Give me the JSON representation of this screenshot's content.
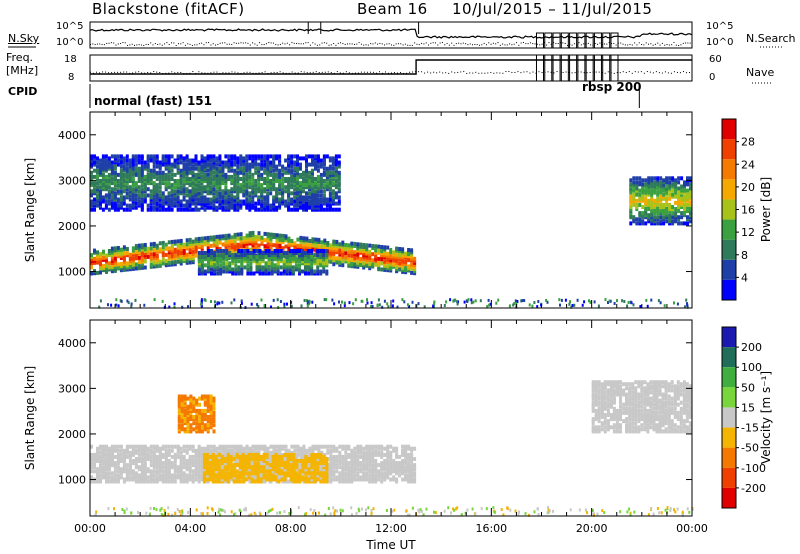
{
  "header": {
    "title": "Blackstone (fitACF)",
    "beam": "Beam 16",
    "date_range": "10/Jul/2015 – 11/Jul/2015"
  },
  "params": {
    "nsky_label": "N.Sky",
    "nsearch_label": "N.Search",
    "freq_label_1": "Freq.",
    "freq_label_2": "[MHz]",
    "nave_label": "Nave",
    "cpid_label": "CPID",
    "nsky_tick_top": "10^5",
    "nsky_tick_bottom": "10^0",
    "nsearch_tick_top": "10^5",
    "nsearch_tick_bottom": "10^0",
    "freq_tick_top": "18",
    "freq_tick_bottom": "8",
    "nave_tick_top": "60",
    "nave_tick_bottom": "0",
    "mode_1": "normal (fast) 151",
    "mode_2": "rbsp 200"
  },
  "chart_data": [
    {
      "type": "heatmap",
      "panel": "power",
      "ylabel": "Slant Range [km]",
      "yticks": [
        "1000",
        "2000",
        "3000",
        "4000"
      ],
      "ylim": [
        200,
        4500
      ],
      "xlim": [
        "00:00",
        "24:00"
      ],
      "colorbar_label": "Power [dB]",
      "colorbar_ticks": [
        "4",
        "8",
        "12",
        "16",
        "20",
        "24",
        "28"
      ],
      "colorbar_range": [
        0,
        30
      ],
      "colors": [
        "#0000ff",
        "#1f3fa8",
        "#2f7a5a",
        "#3aa040",
        "#a8c21a",
        "#f5a800",
        "#f57a00",
        "#f04000",
        "#e00000"
      ],
      "features": [
        {
          "name": "main-echo-band",
          "t_start_h": 0,
          "t_end_h": 13,
          "range_km_start": 1250,
          "range_km_peak": 1650,
          "range_km_end": 1250,
          "peak_power_db": 28
        },
        {
          "name": "upper-diffuse-band",
          "t_start_h": 0,
          "t_end_h": 10,
          "range_km": [
            2400,
            3600
          ],
          "power_db": 10
        },
        {
          "name": "lower-band",
          "t_start_h": 4.3,
          "t_end_h": 9.5,
          "range_km": [
            1000,
            1500
          ],
          "power_db": 14
        },
        {
          "name": "late-band",
          "t_start_h": 21.5,
          "t_end_h": 24,
          "range_km": [
            2100,
            3100
          ],
          "power_db": 18
        }
      ]
    },
    {
      "type": "heatmap",
      "panel": "velocity",
      "ylabel": "Slant Range [km]",
      "yticks": [
        "1000",
        "2000",
        "3000",
        "4000"
      ],
      "ylim": [
        200,
        4500
      ],
      "xlim": [
        "00:00",
        "24:00"
      ],
      "xlabel": "Time UT",
      "xticks": [
        "00:00",
        "04:00",
        "08:00",
        "12:00",
        "16:00",
        "20:00",
        "00:00"
      ],
      "colorbar_label": "Velocity [m s⁻¹]",
      "colorbar_ticks": [
        "200",
        "100",
        "50",
        "15",
        "-15",
        "-50",
        "-100",
        "-200"
      ],
      "colorbar_range": [
        -250,
        250
      ],
      "colors": [
        "#1a1ab0",
        "#206e5a",
        "#3fae3f",
        "#78d63c",
        "#c8c8c8",
        "#f5b400",
        "#f57800",
        "#f04000",
        "#e00000"
      ],
      "features": [
        {
          "name": "ground-scatter-band",
          "t_start_h": 0,
          "t_end_h": 13,
          "range_km": [
            1000,
            1800
          ],
          "velocity_ms": 0
        },
        {
          "name": "negative-velocity-patch",
          "t_start_h": 4.5,
          "t_end_h": 9.5,
          "range_km": [
            1000,
            1600
          ],
          "velocity_ms": -40
        },
        {
          "name": "strong-negative-patch",
          "t_start_h": 3.5,
          "t_end_h": 5,
          "range_km": [
            2100,
            2900
          ],
          "velocity_ms": -90
        },
        {
          "name": "late-ground-scatter",
          "t_start_h": 20,
          "t_end_h": 24,
          "range_km": [
            2100,
            3200
          ],
          "velocity_ms": 0
        }
      ]
    }
  ]
}
